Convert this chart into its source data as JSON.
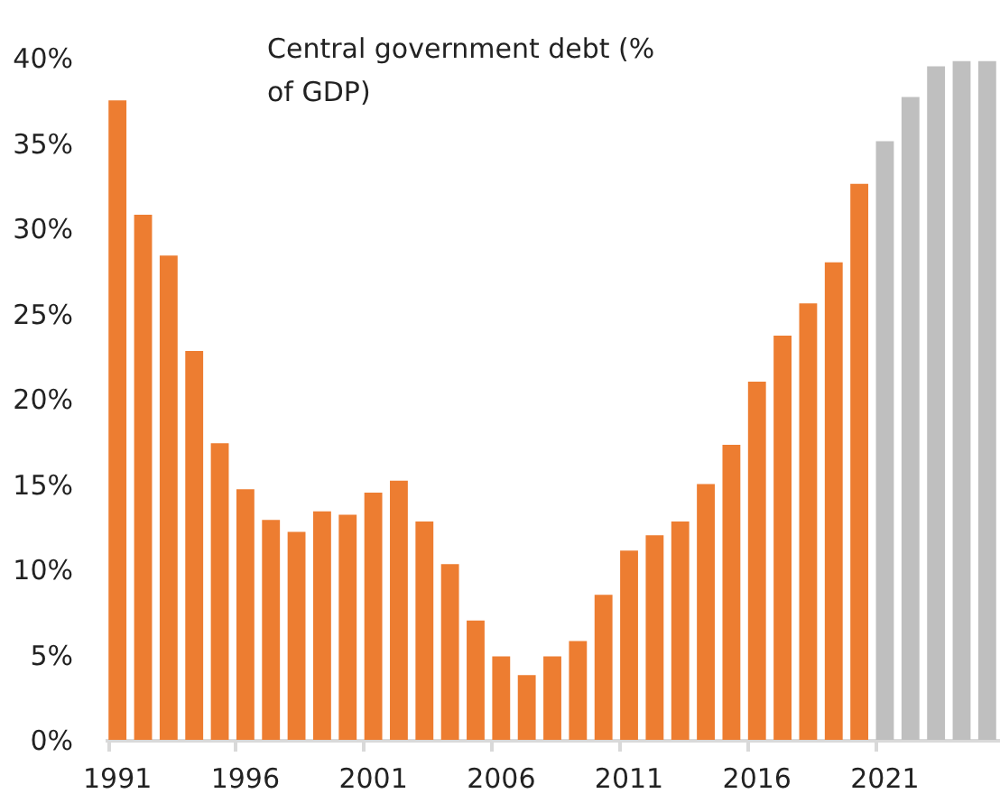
{
  "chart_data": {
    "type": "bar",
    "title": "Central government debt (% of GDP)",
    "categories": [
      "1991",
      null,
      null,
      null,
      null,
      "1996",
      null,
      null,
      null,
      null,
      "2001",
      null,
      null,
      null,
      null,
      "2006",
      null,
      null,
      null,
      null,
      "2011",
      null,
      null,
      null,
      null,
      "2016",
      null,
      null,
      null,
      null,
      "2021",
      null,
      null,
      null,
      null
    ],
    "values": [
      37.5,
      30.8,
      28.4,
      22.8,
      17.4,
      14.7,
      12.9,
      12.2,
      13.4,
      13.2,
      14.5,
      15.2,
      12.8,
      10.3,
      7.0,
      4.9,
      3.8,
      4.9,
      5.8,
      8.5,
      11.1,
      12.0,
      12.8,
      15.0,
      17.3,
      21.0,
      23.7,
      25.6,
      28.0,
      32.6,
      35.1,
      37.7,
      39.5,
      39.8,
      39.8
    ],
    "colors": [
      "#ed7d31",
      "#ed7d31",
      "#ed7d31",
      "#ed7d31",
      "#ed7d31",
      "#ed7d31",
      "#ed7d31",
      "#ed7d31",
      "#ed7d31",
      "#ed7d31",
      "#ed7d31",
      "#ed7d31",
      "#ed7d31",
      "#ed7d31",
      "#ed7d31",
      "#ed7d31",
      "#ed7d31",
      "#ed7d31",
      "#ed7d31",
      "#ed7d31",
      "#ed7d31",
      "#ed7d31",
      "#ed7d31",
      "#ed7d31",
      "#ed7d31",
      "#ed7d31",
      "#ed7d31",
      "#ed7d31",
      "#ed7d31",
      "#ed7d31",
      "#bfbfbf",
      "#bfbfbf",
      "#bfbfbf",
      "#bfbfbf",
      "#bfbfbf"
    ],
    "ylim": [
      0,
      40
    ],
    "yticks": [
      {
        "value": 0,
        "label": "0%"
      },
      {
        "value": 5,
        "label": "5%"
      },
      {
        "value": 10,
        "label": "10%"
      },
      {
        "value": 15,
        "label": "15%"
      },
      {
        "value": 20,
        "label": "20%"
      },
      {
        "value": 25,
        "label": "25%"
      },
      {
        "value": 30,
        "label": "30%"
      },
      {
        "value": 35,
        "label": "35%"
      },
      {
        "value": 40,
        "label": "40%"
      }
    ],
    "grid": false
  }
}
